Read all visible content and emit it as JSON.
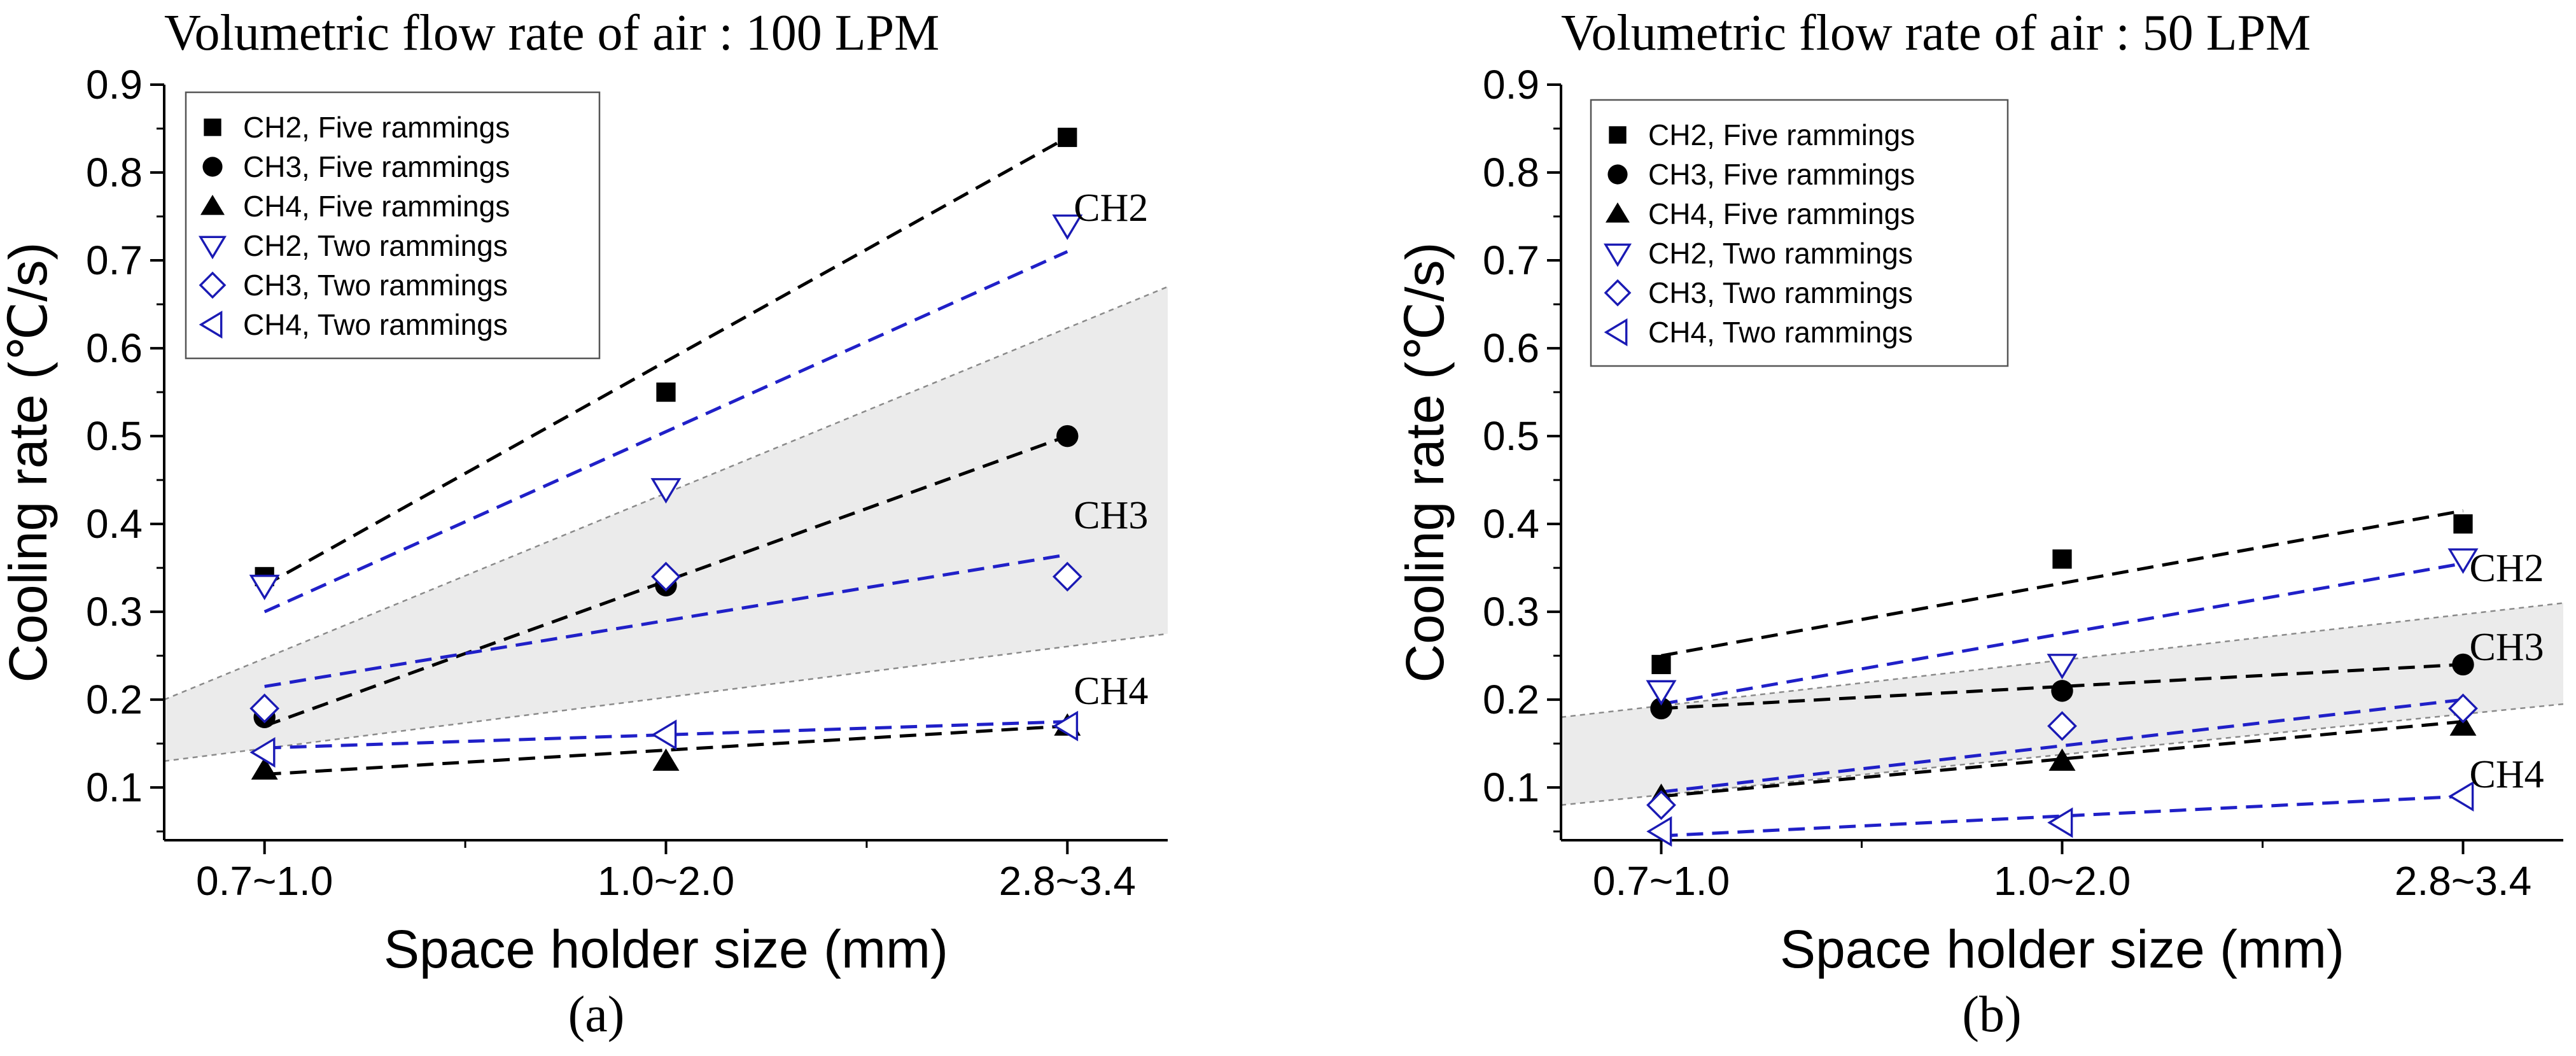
{
  "colors": {
    "five": "#000000",
    "two": "#1a1ab4",
    "trend_two": "#2020c8",
    "band_fill": "#ebebeb",
    "band_edge": "#8a8a8a"
  },
  "legend": {
    "items": [
      {
        "label": "CH2, Five rammings",
        "marker": "square",
        "group": "five"
      },
      {
        "label": "CH3, Five rammings",
        "marker": "circle",
        "group": "five"
      },
      {
        "label": "CH4, Five rammings",
        "marker": "triangle-up",
        "group": "five"
      },
      {
        "label": "CH2, Two rammings",
        "marker": "triangle-down",
        "group": "two"
      },
      {
        "label": "CH3, Two rammings",
        "marker": "diamond",
        "group": "two"
      },
      {
        "label": "CH4, Two rammings",
        "marker": "triangle-left",
        "group": "two"
      }
    ]
  },
  "chart_data": [
    {
      "type": "scatter",
      "panel_label": "(a)",
      "title": "Volumetric flow rate of air : 100 LPM",
      "xlabel": "Space holder size (mm)",
      "ylabel": "Cooling rate (℃/s)",
      "categories": [
        "0.7~1.0",
        "1.0~2.0",
        "2.8~3.4"
      ],
      "x_range": [
        -0.25,
        2.25
      ],
      "ylim": [
        0.04,
        0.9
      ],
      "yticks": [
        "0.1",
        "0.2",
        "0.3",
        "0.4",
        "0.5",
        "0.6",
        "0.7",
        "0.8",
        "0.9"
      ],
      "series": [
        {
          "name": "CH2, Five rammings",
          "values": [
            0.34,
            0.55,
            0.84
          ],
          "trend": [
            0.33,
            0.84
          ]
        },
        {
          "name": "CH3, Five rammings",
          "values": [
            0.18,
            0.33,
            0.5
          ],
          "trend": [
            0.17,
            0.5
          ]
        },
        {
          "name": "CH4, Five rammings",
          "values": [
            0.12,
            0.13,
            0.17
          ],
          "trend": [
            0.115,
            0.17
          ]
        },
        {
          "name": "CH2, Two rammings",
          "values": [
            0.33,
            0.44,
            0.74
          ],
          "trend": [
            0.3,
            0.71
          ]
        },
        {
          "name": "CH3, Two rammings",
          "values": [
            0.19,
            0.34,
            0.34
          ],
          "trend": [
            0.215,
            0.365
          ]
        },
        {
          "name": "CH4, Two rammings",
          "values": [
            0.14,
            0.16,
            0.17
          ],
          "trend": [
            0.145,
            0.175
          ]
        }
      ],
      "band": {
        "upper": [
          0.2,
          0.67
        ],
        "lower": [
          0.13,
          0.275
        ]
      },
      "annotations": [
        {
          "text": "CH2",
          "x": 2.0,
          "y": 0.745
        },
        {
          "text": "CH3",
          "x": 2.0,
          "y": 0.395
        },
        {
          "text": "CH4",
          "x": 2.0,
          "y": 0.195
        }
      ]
    },
    {
      "type": "scatter",
      "panel_label": "(b)",
      "title": "Volumetric flow rate of air : 50 LPM",
      "xlabel": "Space holder size (mm)",
      "ylabel": "Cooling rate (℃/s)",
      "categories": [
        "0.7~1.0",
        "1.0~2.0",
        "2.8~3.4"
      ],
      "x_range": [
        -0.25,
        2.25
      ],
      "ylim": [
        0.04,
        0.9
      ],
      "yticks": [
        "0.1",
        "0.2",
        "0.3",
        "0.4",
        "0.5",
        "0.6",
        "0.7",
        "0.8",
        "0.9"
      ],
      "series": [
        {
          "name": "CH2, Five rammings",
          "values": [
            0.24,
            0.36,
            0.4
          ],
          "trend": [
            0.25,
            0.415
          ]
        },
        {
          "name": "CH3, Five rammings",
          "values": [
            0.19,
            0.21,
            0.24
          ],
          "trend": [
            0.19,
            0.24
          ]
        },
        {
          "name": "CH4, Five rammings",
          "values": [
            0.09,
            0.13,
            0.17
          ],
          "trend": [
            0.09,
            0.175
          ]
        },
        {
          "name": "CH2, Two rammings",
          "values": [
            0.21,
            0.24,
            0.36
          ],
          "trend": [
            0.195,
            0.355
          ]
        },
        {
          "name": "CH3, Two rammings",
          "values": [
            0.08,
            0.17,
            0.19
          ],
          "trend": [
            0.095,
            0.2
          ]
        },
        {
          "name": "CH4, Two rammings",
          "values": [
            0.05,
            0.06,
            0.09
          ],
          "trend": [
            0.045,
            0.09
          ]
        }
      ],
      "band": {
        "upper": [
          0.18,
          0.31
        ],
        "lower": [
          0.08,
          0.195
        ]
      },
      "annotations": [
        {
          "text": "CH2",
          "x": 2.0,
          "y": 0.335
        },
        {
          "text": "CH3",
          "x": 2.0,
          "y": 0.245
        },
        {
          "text": "CH4",
          "x": 2.0,
          "y": 0.1
        }
      ]
    }
  ]
}
